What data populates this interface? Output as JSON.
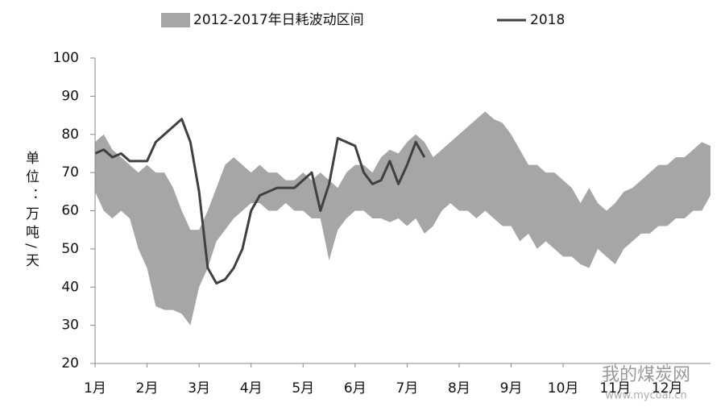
{
  "chart_data": {
    "type": "band-line",
    "y_label": "单位：万吨/天",
    "categories": [
      "1月",
      null,
      null,
      null,
      null,
      null,
      "2月",
      null,
      null,
      null,
      null,
      null,
      "3月",
      null,
      null,
      null,
      null,
      null,
      "4月",
      null,
      null,
      null,
      null,
      null,
      "5月",
      null,
      null,
      null,
      null,
      null,
      "6月",
      null,
      null,
      null,
      null,
      null,
      "7月",
      null,
      null,
      null,
      null,
      null,
      "8月",
      null,
      null,
      null,
      null,
      null,
      "9月",
      null,
      null,
      null,
      null,
      null,
      "10月",
      null,
      null,
      null,
      null,
      null,
      "11月",
      null,
      null,
      null,
      null,
      null,
      "12月",
      null,
      null,
      null,
      null,
      null
    ],
    "series": [
      {
        "name": "2012-2017年日耗波动区间",
        "color": "#a6a6a6",
        "high": [
          78,
          80,
          76,
          74,
          72,
          70,
          72,
          70,
          70,
          66,
          60,
          55,
          55,
          60,
          66,
          72,
          74,
          72,
          70,
          72,
          70,
          70,
          68,
          68,
          70,
          68,
          70,
          68,
          66,
          70,
          72,
          72,
          70,
          74,
          76,
          75,
          78,
          80,
          78,
          74,
          76,
          78,
          80,
          82,
          84,
          86,
          84,
          83,
          80,
          76,
          72,
          72,
          70,
          70,
          68,
          66,
          62,
          66,
          62,
          60,
          62,
          65,
          66,
          68,
          70,
          72,
          72,
          74,
          74,
          76,
          78,
          77
        ],
        "low": [
          65,
          60,
          58,
          60,
          58,
          50,
          45,
          35,
          34,
          34,
          33,
          30,
          40,
          45,
          52,
          55,
          58,
          60,
          62,
          62,
          60,
          60,
          62,
          60,
          60,
          58,
          58,
          47,
          55,
          58,
          60,
          60,
          58,
          58,
          57,
          58,
          56,
          58,
          54,
          56,
          60,
          62,
          60,
          60,
          58,
          60,
          58,
          56,
          56,
          52,
          54,
          50,
          52,
          50,
          48,
          48,
          46,
          45,
          50,
          48,
          46,
          50,
          52,
          54,
          54,
          56,
          56,
          58,
          58,
          60,
          60,
          64
        ]
      },
      {
        "name": "2018",
        "color": "#404040",
        "values": [
          75,
          76,
          74,
          75,
          73,
          73,
          73,
          78,
          80,
          82,
          84,
          78,
          65,
          45,
          41,
          42,
          45,
          50,
          60,
          64,
          65,
          66,
          66,
          66,
          68,
          70,
          60,
          67,
          79,
          78,
          77,
          70,
          67,
          68,
          73,
          67,
          72,
          78,
          74,
          null,
          null,
          null,
          null,
          null,
          null,
          null,
          null,
          null,
          null,
          null,
          null,
          null,
          null,
          null,
          null,
          null,
          null,
          null,
          null,
          null,
          null,
          null,
          null,
          null,
          null,
          null,
          null,
          null,
          null,
          null,
          null,
          null
        ]
      }
    ],
    "ylim": [
      20,
      100
    ],
    "yticks": [
      20,
      30,
      40,
      50,
      60,
      70,
      80,
      90,
      100
    ],
    "watermark": [
      "我的煤炭网",
      "www.mycoal.cn"
    ]
  }
}
